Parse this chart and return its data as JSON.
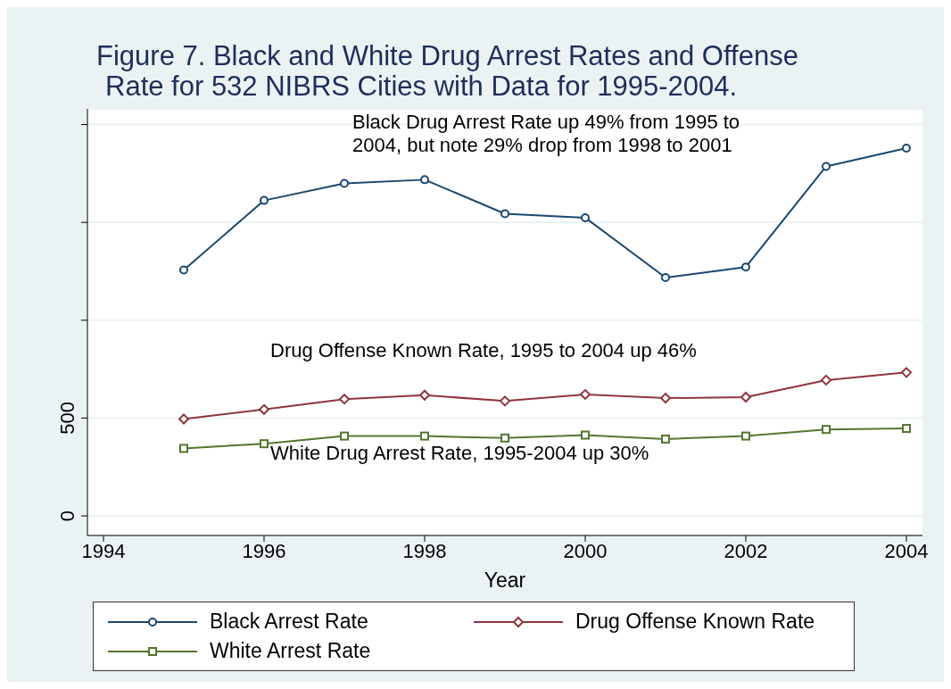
{
  "chart_data": {
    "type": "line",
    "title": "Figure 7. Black and White Drug Arrest Rates and Offense\nRate for 532 NIBRS Cities with Data for 1995-2004.",
    "xlabel": "Year",
    "x": [
      1995,
      1996,
      1997,
      1998,
      1999,
      2000,
      2001,
      2002,
      2003,
      2004
    ],
    "series": [
      {
        "name": "Black Arrest Rate",
        "color": "#1a476f",
        "marker": "circle",
        "values": [
          1257,
          1612,
          1699,
          1718,
          1544,
          1524,
          1218,
          1272,
          1786,
          1879
        ]
      },
      {
        "name": "Drug Offense Known Rate",
        "color": "#90353b",
        "marker": "diamond",
        "values": [
          495,
          544,
          597,
          617,
          587,
          621,
          602,
          607,
          694,
          733
        ]
      },
      {
        "name": "White Arrest Rate",
        "color": "#55752f",
        "marker": "square",
        "values": [
          345,
          369,
          408,
          408,
          398,
          413,
          393,
          408,
          442,
          447
        ]
      }
    ],
    "xlim": [
      1993.8,
      2004.2
    ],
    "xticks": [
      1994,
      1996,
      1998,
      2000,
      2002,
      2004
    ],
    "ylim": [
      -100,
      2080
    ],
    "yticks": [
      0,
      500,
      {
        "value": 1000,
        "label": null
      },
      {
        "value": 1500,
        "label": null
      },
      {
        "value": 2000,
        "label": null
      }
    ],
    "grid": "y",
    "legend": "bottom",
    "line_style": "solid",
    "annotations": [
      "Black Drug Arrest Rate up 49% from 1995 to\n2004, but note 29% drop from 1998 to 2001",
      "Drug Offense Known Rate, 1995 to 2004 up 46%",
      "White Drug Arrest Rate, 1995-2004 up 30%"
    ]
  }
}
